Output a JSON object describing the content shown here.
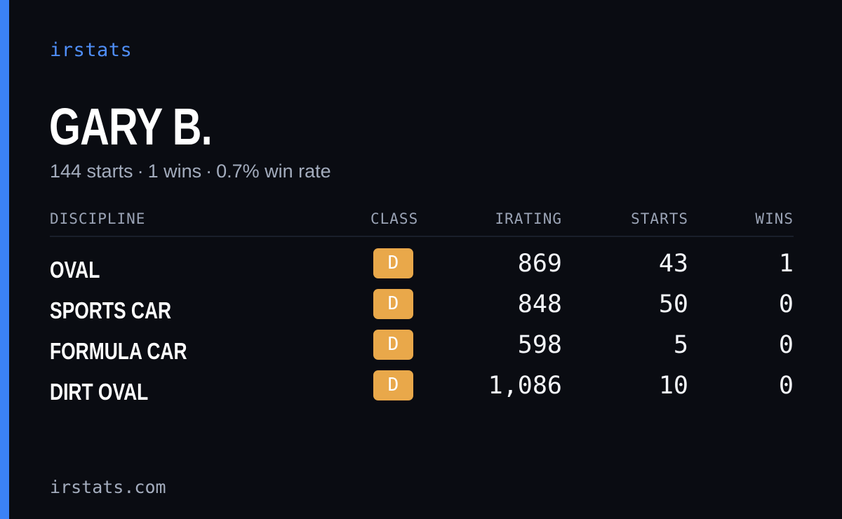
{
  "brand": "irstats",
  "driver": {
    "name": "GARY B.",
    "summary": {
      "starts": "144 starts",
      "wins": "1 wins",
      "win_rate": "0.7% win rate",
      "separator": "·"
    }
  },
  "table": {
    "headers": {
      "discipline": "DISCIPLINE",
      "class": "CLASS",
      "irating": "IRATING",
      "starts": "STARTS",
      "wins": "WINS"
    },
    "rows": [
      {
        "discipline": "OVAL",
        "class": "D",
        "irating": "869",
        "starts": "43",
        "wins": "1"
      },
      {
        "discipline": "SPORTS CAR",
        "class": "D",
        "irating": "848",
        "starts": "50",
        "wins": "0"
      },
      {
        "discipline": "FORMULA CAR",
        "class": "D",
        "irating": "598",
        "starts": "5",
        "wins": "0"
      },
      {
        "discipline": "DIRT OVAL",
        "class": "D",
        "irating": "1,086",
        "starts": "10",
        "wins": "0"
      }
    ]
  },
  "footer": {
    "domain": "irstats.com"
  },
  "colors": {
    "accent": "#3b82f6",
    "brand_text": "#4f8ef7",
    "class_d_badge": "#e9a84a",
    "background": "#0a0c12"
  }
}
